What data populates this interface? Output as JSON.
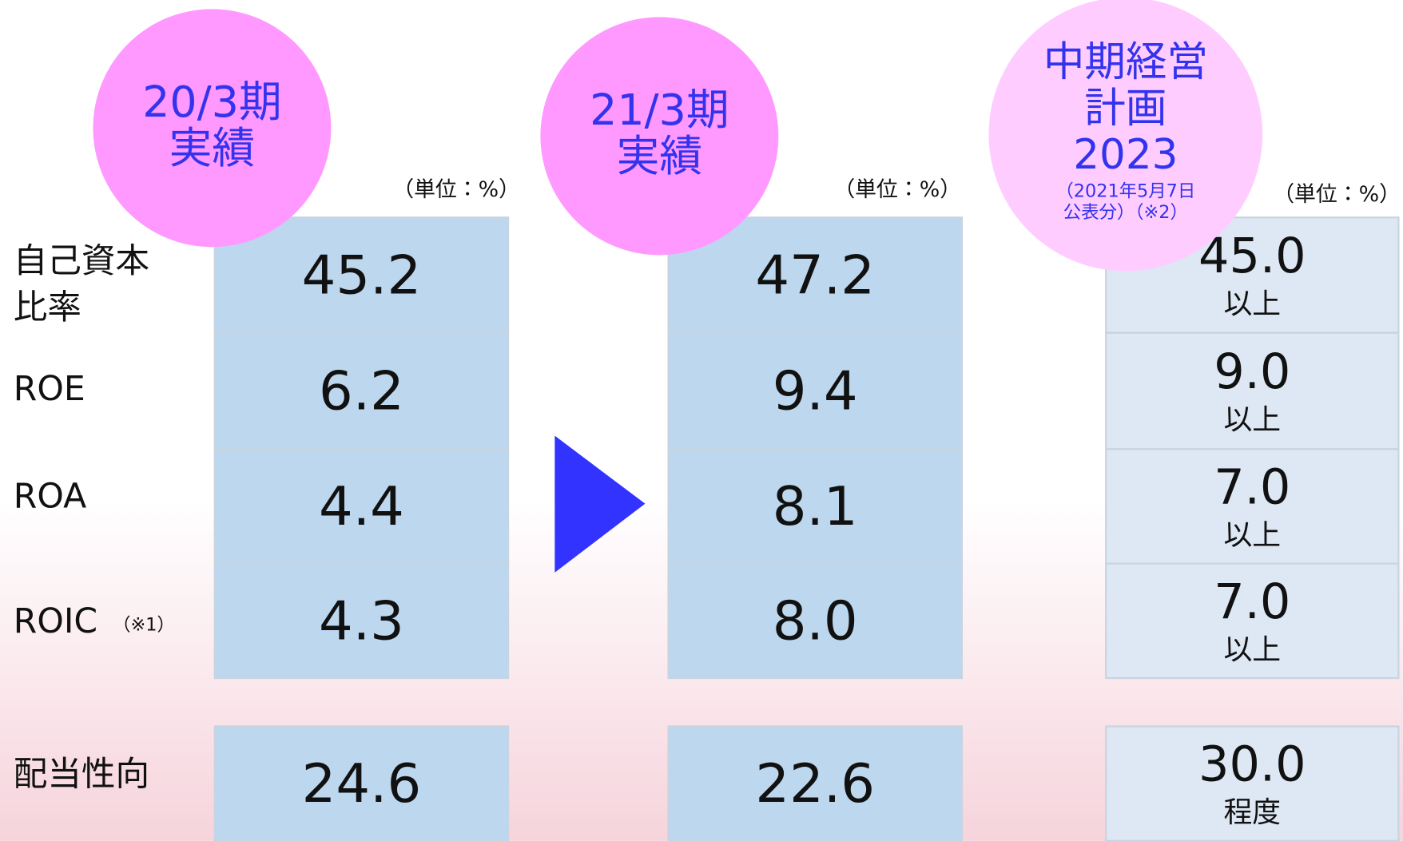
{
  "row_labels": [
    {
      "lines": [
        "自己資本",
        "比率"
      ]
    },
    {
      "lines": [
        "ROE"
      ]
    },
    {
      "lines": [
        "ROA"
      ]
    },
    {
      "lines": [
        "ROIC"
      ],
      "note": "（※1）"
    },
    {
      "lines": [
        "配当性向"
      ]
    }
  ],
  "columns": [
    {
      "header": [
        "20/3期",
        "実績"
      ],
      "unit": "（単位：%）",
      "cells": [
        {
          "value": "45.2"
        },
        {
          "value": "6.2"
        },
        {
          "value": "4.4"
        },
        {
          "value": "4.3"
        },
        {
          "value": "24.6"
        }
      ]
    },
    {
      "header": [
        "21/3期",
        "実績"
      ],
      "unit": "（単位：%）",
      "cells": [
        {
          "value": "47.2"
        },
        {
          "value": "9.4"
        },
        {
          "value": "8.1"
        },
        {
          "value": "8.0"
        },
        {
          "value": "22.6"
        }
      ]
    },
    {
      "header": [
        "中期経営",
        "計画",
        "2023"
      ],
      "header_note": [
        "（2021年5月7日",
        "公表分）（※2）"
      ],
      "unit": "（単位：%）",
      "cells": [
        {
          "value": "45.0",
          "qualifier": "以上"
        },
        {
          "value": "9.0",
          "qualifier": "以上"
        },
        {
          "value": "7.0",
          "qualifier": "以上"
        },
        {
          "value": "7.0",
          "qualifier": "以上"
        },
        {
          "value": "30.0",
          "qualifier": "程度"
        }
      ]
    }
  ]
}
